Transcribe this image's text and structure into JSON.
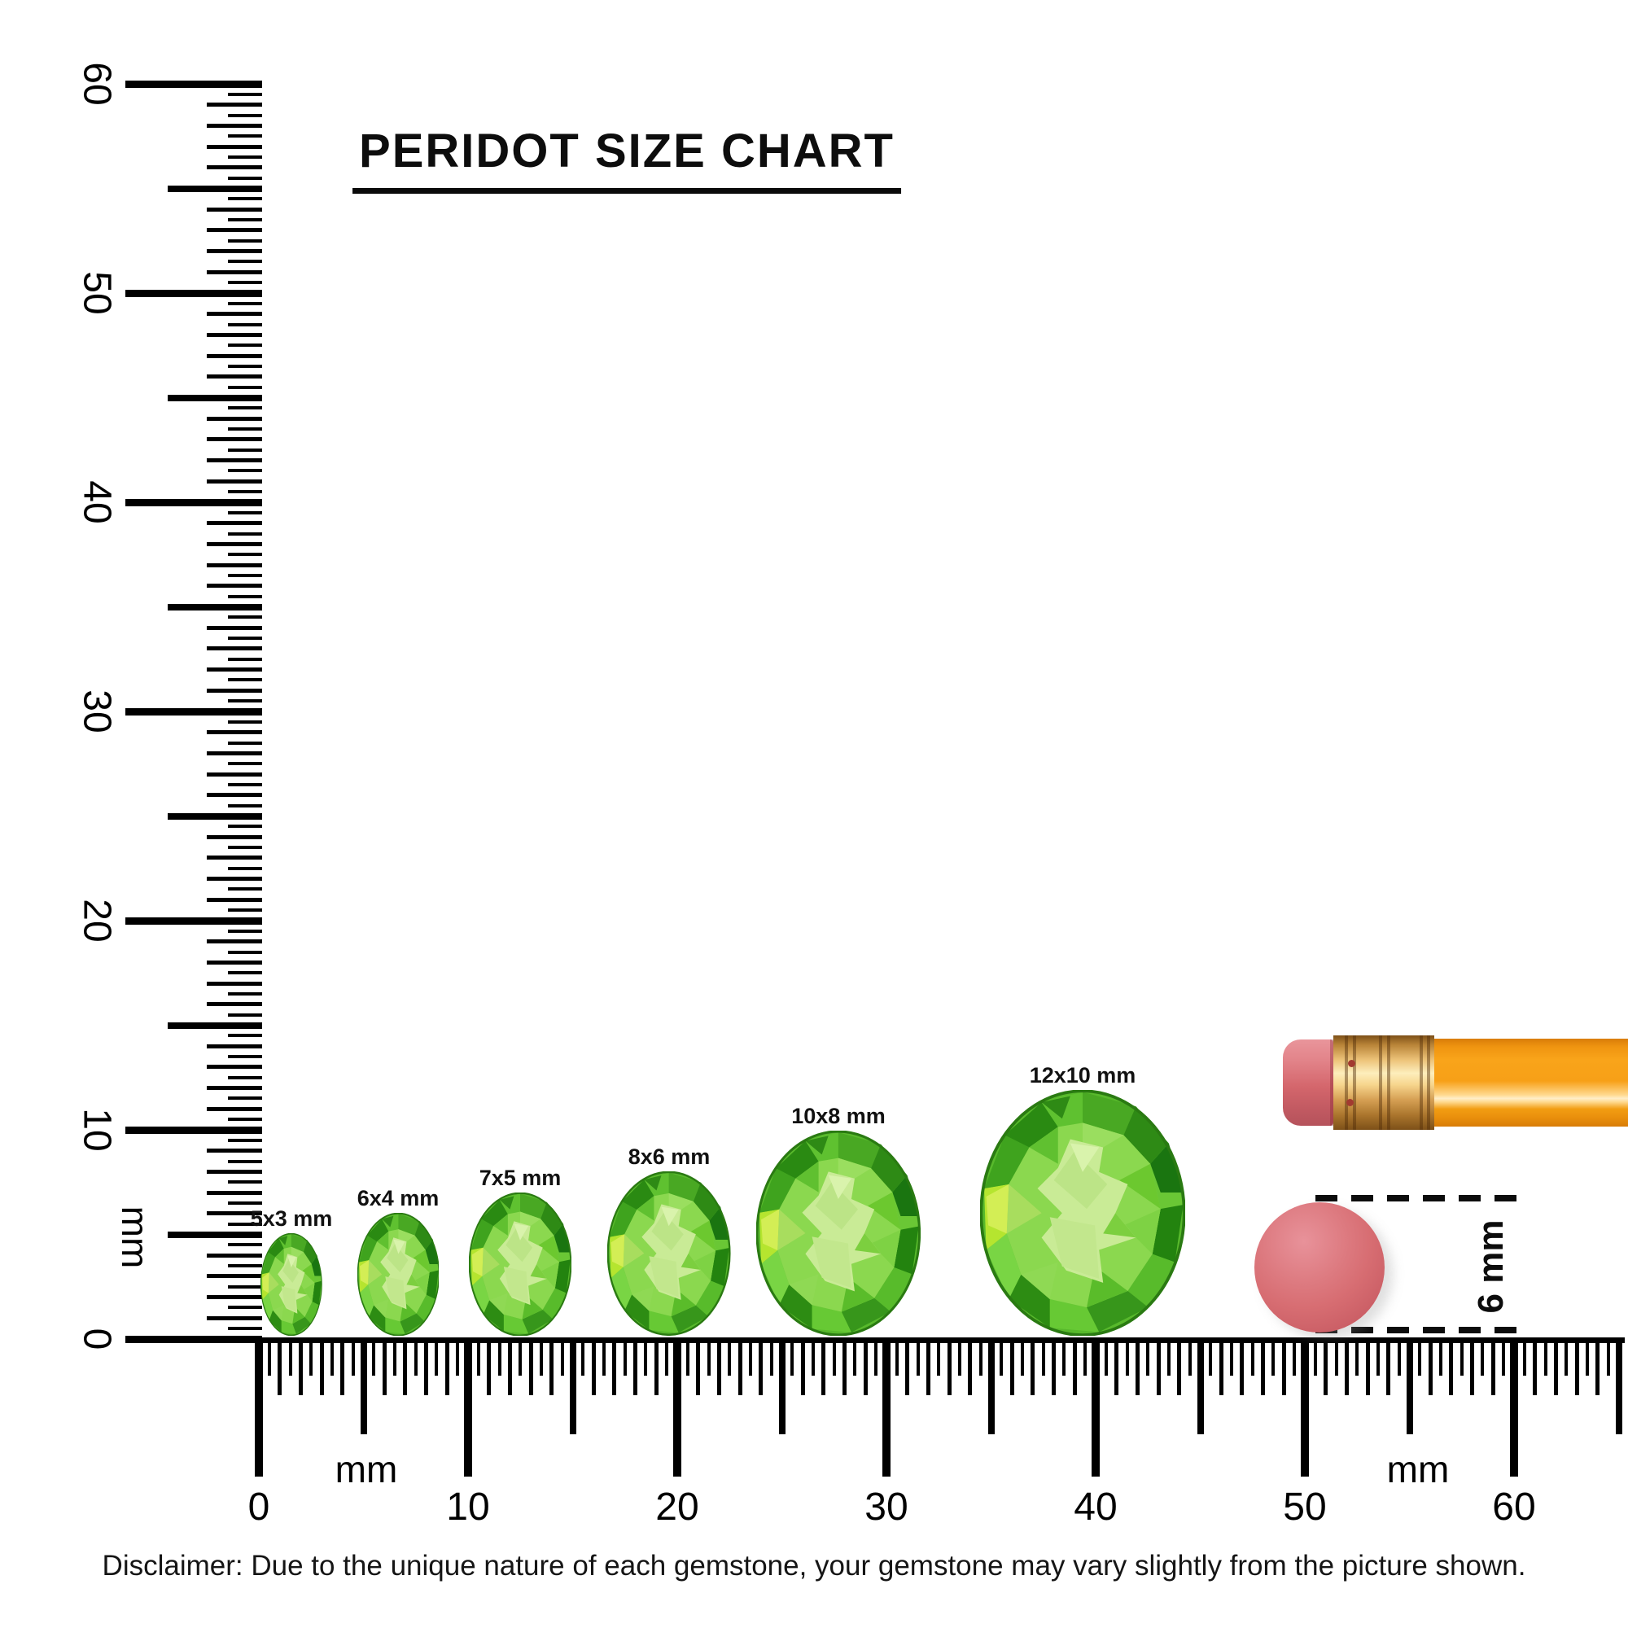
{
  "title": "PERIDOT SIZE CHART",
  "disclaimer": "Disclaimer: Due to the unique nature of each gemstone, your gemstone may vary slightly from the picture shown.",
  "vertical_ruler": {
    "unit_label": "mm",
    "tick_labels": [
      "0",
      "10",
      "20",
      "30",
      "40",
      "50",
      "60"
    ]
  },
  "horizontal_ruler": {
    "unit_label_left": "mm",
    "unit_label_right": "mm",
    "tick_labels": [
      "0",
      "10",
      "20",
      "30",
      "40",
      "50",
      "60"
    ]
  },
  "gems": [
    {
      "label": "5x3 mm",
      "length_mm": 5,
      "width_mm": 3
    },
    {
      "label": "6x4 mm",
      "length_mm": 6,
      "width_mm": 4
    },
    {
      "label": "7x5 mm",
      "length_mm": 7,
      "width_mm": 5
    },
    {
      "label": "8x6 mm",
      "length_mm": 8,
      "width_mm": 6
    },
    {
      "label": "10x8 mm",
      "length_mm": 10,
      "width_mm": 8
    },
    {
      "label": "12x10 mm",
      "length_mm": 12,
      "width_mm": 10
    }
  ],
  "reference_dot": {
    "label": "6 mm",
    "diameter_mm": 6
  },
  "colors": {
    "gem_base": "#58b92c",
    "gem_table": "#c9eb96",
    "ruler": "#000000",
    "pencil_body": "#f7a017",
    "pencil_ferrule": "#edc379",
    "pencil_eraser": "#d4666c",
    "reference_dot": "#d76d72"
  }
}
